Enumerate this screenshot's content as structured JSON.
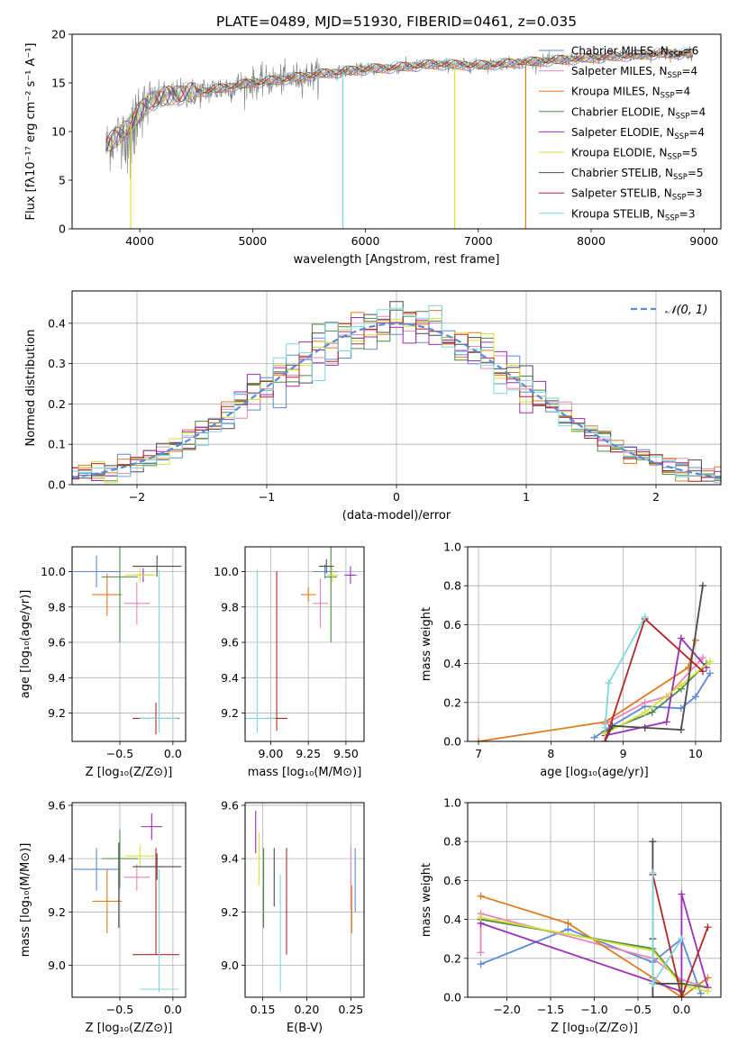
{
  "figure": {
    "title": "PLATE=0489, MJD=51930, FIBERID=0461, z=0.035",
    "series_colors": {
      "Chabrier MILES": "#5b8bd6",
      "Salpeter MILES": "#e886b8",
      "Kroupa MILES": "#e07b20",
      "Chabrier ELODIE": "#4d8a4a",
      "Salpeter ELODIE": "#9a2fb8",
      "Kroupa ELODIE": "#d6e23a",
      "Chabrier STELIB": "#4a4a4a",
      "Salpeter STELIB": "#b0282a",
      "Kroupa STELIB": "#7ed8de",
      "data": "#808080",
      "gaussian": "#5b8bd6"
    }
  },
  "chart_data": [
    {
      "id": "spectrum",
      "type": "line",
      "title": "PLATE=0489, MJD=51930, FIBERID=0461, z=0.035",
      "xlabel": "wavelength [Angstrom, rest frame]",
      "ylabel": "Flux [fλ10⁻¹⁷ erg cm⁻² s⁻¹ A⁻¹]",
      "xlim": [
        3400,
        9150
      ],
      "ylim": [
        0,
        20
      ],
      "xticks": [
        4000,
        5000,
        6000,
        7000,
        8000,
        9000
      ],
      "yticks": [
        0,
        5,
        10,
        15,
        20
      ],
      "grid": false,
      "legend_position": "right",
      "continuum": {
        "x": [
          3700,
          3800,
          3900,
          4000,
          4100,
          4300,
          4500,
          4800,
          5000,
          5300,
          5600,
          6000,
          6300,
          6600,
          7000,
          7400,
          7800,
          8200,
          8600,
          8900
        ],
        "y": [
          8.5,
          9.5,
          10.5,
          12.0,
          13.2,
          13.8,
          14.0,
          14.6,
          15.0,
          15.4,
          15.9,
          16.4,
          16.6,
          16.9,
          16.8,
          17.1,
          17.4,
          17.7,
          18.0,
          18.0
        ]
      },
      "spikes": [
        {
          "x": 3920,
          "y": 0,
          "color": "#d6e23a"
        },
        {
          "x": 5800,
          "y": 0,
          "color": "#7ed8de"
        },
        {
          "x": 6790,
          "y": 0,
          "color": "#d6e23a"
        },
        {
          "x": 7420,
          "y": 0,
          "color": "#e07b20"
        }
      ],
      "series": [
        {
          "name": "Chabrier MILES, N_SSP=6",
          "label": "Chabrier MILES, N",
          "sub": "SSP",
          "suffix": "=6",
          "color": "#5b8bd6"
        },
        {
          "name": "Salpeter MILES, N_SSP=4",
          "label": "Salpeter MILES, N",
          "sub": "SSP",
          "suffix": "=4",
          "color": "#e886b8"
        },
        {
          "name": "Kroupa MILES, N_SSP=4",
          "label": "Kroupa MILES, N",
          "sub": "SSP",
          "suffix": "=4",
          "color": "#e07b20"
        },
        {
          "name": "Chabrier ELODIE, N_SSP=4",
          "label": "Chabrier ELODIE, N",
          "sub": "SSP",
          "suffix": "=4",
          "color": "#4d8a4a"
        },
        {
          "name": "Salpeter ELODIE, N_SSP=4",
          "label": "Salpeter ELODIE, N",
          "sub": "SSP",
          "suffix": "=4",
          "color": "#9a2fb8"
        },
        {
          "name": "Kroupa ELODIE, N_SSP=5",
          "label": "Kroupa ELODIE, N",
          "sub": "SSP",
          "suffix": "=5",
          "color": "#d6e23a"
        },
        {
          "name": "Chabrier STELIB, N_SSP=5",
          "label": "Chabrier STELIB, N",
          "sub": "SSP",
          "suffix": "=5",
          "color": "#4a4a4a"
        },
        {
          "name": "Salpeter STELIB, N_SSP=3",
          "label": "Salpeter STELIB, N",
          "sub": "SSP",
          "suffix": "=3",
          "color": "#b0282a"
        },
        {
          "name": "Kroupa STELIB, N_SSP=3",
          "label": "Kroupa STELIB, N",
          "sub": "SSP",
          "suffix": "=3",
          "color": "#7ed8de"
        }
      ]
    },
    {
      "id": "residuals",
      "type": "line",
      "xlabel": "(data-model)/error",
      "ylabel": "Normed distribution",
      "xlim": [
        -2.5,
        2.5
      ],
      "ylim": [
        0,
        0.48
      ],
      "xticks": [
        -2,
        -1,
        0,
        1,
        2
      ],
      "xticklabels": [
        "−2",
        "−1",
        "0",
        "1",
        "2"
      ],
      "yticks": [
        0.0,
        0.1,
        0.2,
        0.3,
        0.4
      ],
      "yticklabels": [
        "0.0",
        "0.1",
        "0.2",
        "0.3",
        "0.4"
      ],
      "grid": true,
      "legend": "𝒩(0, 1)",
      "legend_position": "top-right",
      "gaussian": {
        "mean": 0,
        "sigma": 1
      },
      "bin_width": 0.1
    },
    {
      "id": "z-age",
      "type": "scatter",
      "xlabel": "Z [log₁₀(Z/Z⊙)]",
      "ylabel": "age  [log₁₀(age/yr)]",
      "xlim": [
        -0.95,
        0.12
      ],
      "ylim": [
        9.04,
        10.14
      ],
      "xticks": [
        -0.5,
        0.0
      ],
      "xticklabels": [
        "−0.5",
        "0.0"
      ],
      "yticks": [
        9.2,
        9.4,
        9.6,
        9.8,
        10.0
      ],
      "yticklabels": [
        "9.2",
        "9.4",
        "9.6",
        "9.8",
        "10.0"
      ],
      "grid": true,
      "points": [
        {
          "x": -0.72,
          "y": 10.0,
          "xerr": 0.22,
          "yerr": 0.09,
          "color": "#5b8bd6"
        },
        {
          "x": -0.34,
          "y": 9.82,
          "xerr": 0.12,
          "yerr": 0.12,
          "color": "#e886b8"
        },
        {
          "x": -0.62,
          "y": 9.87,
          "xerr": 0.14,
          "yerr": 0.12,
          "color": "#e07b20"
        },
        {
          "x": -0.5,
          "y": 9.97,
          "xerr": 0.17,
          "yerr": 0.37,
          "color": "#4d8a4a"
        },
        {
          "x": -0.28,
          "y": 9.98,
          "xerr": 0.1,
          "yerr": 0.04,
          "color": "#9a2fb8"
        },
        {
          "x": -0.31,
          "y": 9.98,
          "xerr": 0.14,
          "yerr": 0.04,
          "color": "#d6e23a"
        },
        {
          "x": -0.15,
          "y": 10.03,
          "xerr": 0.23,
          "yerr": 0.06,
          "color": "#4a4a4a"
        },
        {
          "x": -0.16,
          "y": 9.17,
          "xerr": 0.22,
          "yerr": 0.09,
          "color": "#b0282a"
        },
        {
          "x": -0.13,
          "y": 9.55,
          "xerr": 0.0,
          "yerr": 0.46,
          "color": "#7ed8de"
        },
        {
          "x": -0.13,
          "y": 9.17,
          "xerr": 0.18,
          "yerr": 0.0,
          "color": "#7ed8de"
        }
      ]
    },
    {
      "id": "mass-age",
      "type": "scatter",
      "xlabel": "mass [log₁₀(M/M⊙)]",
      "xlim": [
        8.83,
        9.62
      ],
      "ylim": [
        9.04,
        10.14
      ],
      "xticks": [
        9.0,
        9.25,
        9.5
      ],
      "xticklabels": [
        "9.00",
        "9.25",
        "9.50"
      ],
      "yticks": [
        9.2,
        9.4,
        9.6,
        9.8,
        10.0
      ],
      "yticklabels": [
        "9.2",
        "9.4",
        "9.6",
        "9.8",
        "10.0"
      ],
      "grid": true,
      "points": [
        {
          "x": 9.36,
          "y": 10.0,
          "xerr": 0.08,
          "yerr": 0.04,
          "color": "#5b8bd6"
        },
        {
          "x": 9.33,
          "y": 9.82,
          "xerr": 0.05,
          "yerr": 0.14,
          "color": "#e886b8"
        },
        {
          "x": 9.25,
          "y": 9.87,
          "xerr": 0.05,
          "yerr": 0.04,
          "color": "#e07b20"
        },
        {
          "x": 9.4,
          "y": 9.97,
          "xerr": 0.04,
          "yerr": 0.37,
          "color": "#4d8a4a"
        },
        {
          "x": 9.53,
          "y": 9.98,
          "xerr": 0.04,
          "yerr": 0.05,
          "color": "#9a2fb8"
        },
        {
          "x": 9.41,
          "y": 9.98,
          "xerr": 0.04,
          "yerr": 0.04,
          "color": "#d6e23a"
        },
        {
          "x": 9.37,
          "y": 10.03,
          "xerr": 0.05,
          "yerr": 0.04,
          "color": "#4a4a4a"
        },
        {
          "x": 9.04,
          "y": 9.17,
          "xerr": 0.07,
          "yerr": 0.0,
          "color": "#b0282a"
        },
        {
          "x": 9.04,
          "y": 9.55,
          "xerr": 0.0,
          "yerr": 0.45,
          "color": "#b0282a"
        },
        {
          "x": 8.91,
          "y": 9.55,
          "xerr": 0.0,
          "yerr": 0.46,
          "color": "#7ed8de"
        },
        {
          "x": 8.91,
          "y": 9.17,
          "xerr": 0.12,
          "yerr": 0.0,
          "color": "#7ed8de"
        }
      ]
    },
    {
      "id": "age-weight",
      "type": "line",
      "xlabel": "age  [log₁₀(age/yr)]",
      "ylabel": "mass weight",
      "xlim": [
        6.85,
        10.35
      ],
      "ylim": [
        0,
        1.0
      ],
      "xticks": [
        7,
        8,
        9,
        10
      ],
      "xticklabels": [
        "7",
        "8",
        "9",
        "10"
      ],
      "yticks": [
        0.0,
        0.2,
        0.4,
        0.6,
        0.8,
        1.0
      ],
      "yticklabels": [
        "0.0",
        "0.2",
        "0.4",
        "0.6",
        "0.8",
        "1.0"
      ],
      "grid": true,
      "series": [
        {
          "color": "#5b8bd6",
          "x": [
            8.6,
            8.8,
            9.3,
            9.8,
            10.0,
            10.2
          ],
          "y": [
            0.02,
            0.07,
            0.18,
            0.17,
            0.23,
            0.35
          ]
        },
        {
          "color": "#e886b8",
          "x": [
            8.75,
            9.3,
            9.6,
            10.1
          ],
          "y": [
            0.09,
            0.2,
            0.23,
            0.43
          ]
        },
        {
          "color": "#e07b20",
          "x": [
            7.0,
            8.75,
            9.9,
            10.0
          ],
          "y": [
            0.0,
            0.1,
            0.38,
            0.52
          ]
        },
        {
          "color": "#4d8a4a",
          "x": [
            8.75,
            9.4,
            9.8,
            10.15
          ],
          "y": [
            0.05,
            0.15,
            0.27,
            0.4
          ]
        },
        {
          "color": "#9a2fb8",
          "x": [
            8.75,
            9.6,
            9.8,
            10.15
          ],
          "y": [
            0.03,
            0.1,
            0.53,
            0.38
          ]
        },
        {
          "color": "#d6e23a",
          "x": [
            8.75,
            9.3,
            9.8,
            10.2
          ],
          "y": [
            0.04,
            0.15,
            0.29,
            0.41
          ]
        },
        {
          "color": "#4a4a4a",
          "x": [
            8.75,
            8.85,
            9.3,
            9.8,
            10.1
          ],
          "y": [
            0.0,
            0.08,
            0.07,
            0.06,
            0.8
          ]
        },
        {
          "color": "#b0282a",
          "x": [
            8.75,
            9.3,
            10.1
          ],
          "y": [
            0.0,
            0.63,
            0.36
          ]
        },
        {
          "color": "#7ed8de",
          "x": [
            8.75,
            8.8,
            9.3
          ],
          "y": [
            0.07,
            0.3,
            0.64
          ]
        }
      ]
    },
    {
      "id": "z-mass",
      "type": "scatter",
      "xlabel": "Z [log₁₀(Z/Z⊙)]",
      "ylabel": "mass [log₁₀(M/M⊙)]",
      "xlim": [
        -0.95,
        0.12
      ],
      "ylim": [
        8.88,
        9.61
      ],
      "xticks": [
        -0.5,
        0.0
      ],
      "xticklabels": [
        "−0.5",
        "0.0"
      ],
      "yticks": [
        9.0,
        9.2,
        9.4,
        9.6
      ],
      "yticklabels": [
        "9.0",
        "9.2",
        "9.4",
        "9.6"
      ],
      "grid": true,
      "points": [
        {
          "x": -0.72,
          "y": 9.36,
          "xerr": 0.22,
          "yerr": 0.08,
          "color": "#5b8bd6"
        },
        {
          "x": -0.34,
          "y": 9.33,
          "xerr": 0.12,
          "yerr": 0.05,
          "color": "#e886b8"
        },
        {
          "x": -0.62,
          "y": 9.24,
          "xerr": 0.14,
          "yerr": 0.12,
          "color": "#e07b20"
        },
        {
          "x": -0.5,
          "y": 9.4,
          "xerr": 0.17,
          "yerr": 0.11,
          "color": "#4d8a4a"
        },
        {
          "x": -0.2,
          "y": 9.52,
          "xerr": 0.1,
          "yerr": 0.05,
          "color": "#9a2fb8"
        },
        {
          "x": -0.31,
          "y": 9.41,
          "xerr": 0.14,
          "yerr": 0.04,
          "color": "#d6e23a"
        },
        {
          "x": -0.15,
          "y": 9.37,
          "xerr": 0.23,
          "yerr": 0.05,
          "color": "#4a4a4a"
        },
        {
          "x": -0.51,
          "y": 9.3,
          "xerr": 0.0,
          "yerr": 0.16,
          "color": "#4a4a4a"
        },
        {
          "x": -0.16,
          "y": 9.04,
          "xerr": 0.22,
          "yerr": 0.0,
          "color": "#b0282a"
        },
        {
          "x": -0.16,
          "y": 9.24,
          "xerr": 0.0,
          "yerr": 0.2,
          "color": "#b0282a"
        },
        {
          "x": -0.13,
          "y": 8.91,
          "xerr": 0.18,
          "yerr": 0.0,
          "color": "#7ed8de"
        },
        {
          "x": -0.13,
          "y": 9.13,
          "xerr": 0.0,
          "yerr": 0.23,
          "color": "#7ed8de"
        }
      ]
    },
    {
      "id": "ebv-mass",
      "type": "scatter",
      "xlabel": "E(B-V)",
      "xlim": [
        0.13,
        0.265
      ],
      "ylim": [
        8.88,
        9.61
      ],
      "xticks": [
        0.15,
        0.2,
        0.25
      ],
      "xticklabels": [
        "0.15",
        "0.20",
        "0.25"
      ],
      "yticks": [
        9.0,
        9.2,
        9.4,
        9.6
      ],
      "yticklabels": [
        "9.0",
        "9.2",
        "9.4",
        "9.6"
      ],
      "grid": true,
      "points": [
        {
          "x": 0.255,
          "y": 9.32,
          "xerr": 0.0,
          "yerr": 0.12,
          "color": "#5b8bd6"
        },
        {
          "x": 0.25,
          "y": 9.33,
          "xerr": 0.0,
          "yerr": 0.12,
          "color": "#e886b8"
        },
        {
          "x": 0.251,
          "y": 9.21,
          "xerr": 0.0,
          "yerr": 0.09,
          "color": "#e07b20"
        },
        {
          "x": 0.151,
          "y": 9.29,
          "xerr": 0.0,
          "yerr": 0.15,
          "color": "#4d8a4a"
        },
        {
          "x": 0.142,
          "y": 9.5,
          "xerr": 0.0,
          "yerr": 0.08,
          "color": "#9a2fb8"
        },
        {
          "x": 0.146,
          "y": 9.4,
          "xerr": 0.0,
          "yerr": 0.1,
          "color": "#d6e23a"
        },
        {
          "x": 0.163,
          "y": 9.33,
          "xerr": 0.0,
          "yerr": 0.11,
          "color": "#4a4a4a"
        },
        {
          "x": 0.177,
          "y": 9.24,
          "xerr": 0.0,
          "yerr": 0.2,
          "color": "#b0282a"
        },
        {
          "x": 0.17,
          "y": 9.12,
          "xerr": 0.0,
          "yerr": 0.22,
          "color": "#7ed8de"
        }
      ]
    },
    {
      "id": "z-weight",
      "type": "line",
      "xlabel": "Z [log₁₀(Z/Z⊙)]",
      "ylabel": "mass weight",
      "xlim": [
        -2.45,
        0.45
      ],
      "ylim": [
        0,
        1.0
      ],
      "xticks": [
        -2.0,
        -1.5,
        -1.0,
        -0.5,
        0.0
      ],
      "xticklabels": [
        "−2.0",
        "−1.5",
        "−1.0",
        "−0.5",
        "0.0"
      ],
      "yticks": [
        0.0,
        0.2,
        0.4,
        0.6,
        0.8,
        1.0
      ],
      "yticklabels": [
        "0.0",
        "0.2",
        "0.4",
        "0.6",
        "0.8",
        "1.0"
      ],
      "grid": true,
      "series": [
        {
          "color": "#5b8bd6",
          "x": [
            -2.3,
            -1.3,
            -0.33,
            0.0,
            0.22
          ],
          "y": [
            0.17,
            0.35,
            0.18,
            0.3,
            0.02
          ]
        },
        {
          "color": "#e886b8",
          "x": [
            -2.3,
            -2.3,
            -0.33,
            0.0,
            0.3
          ],
          "y": [
            0.23,
            0.43,
            0.2,
            0.09,
            0.05
          ]
        },
        {
          "color": "#e07b20",
          "x": [
            -2.3,
            -1.3,
            -0.33,
            0.0,
            0.3
          ],
          "y": [
            0.52,
            0.38,
            0.1,
            0.0,
            0.1
          ]
        },
        {
          "color": "#4d8a4a",
          "x": [
            -2.3,
            -0.33,
            0.0,
            0.3
          ],
          "y": [
            0.4,
            0.25,
            0.07,
            0.05
          ]
        },
        {
          "color": "#9a2fb8",
          "x": [
            -2.3,
            0.0,
            0.0,
            0.3
          ],
          "y": [
            0.38,
            0.03,
            0.53,
            0.05
          ]
        },
        {
          "color": "#d6e23a",
          "x": [
            -2.3,
            -0.33,
            0.0,
            0.3
          ],
          "y": [
            0.41,
            0.24,
            0.06,
            0.03
          ]
        },
        {
          "color": "#4a4a4a",
          "x": [
            -0.33,
            -0.33,
            0.0,
            0.0,
            -0.33,
            -0.33
          ],
          "y": [
            0.8,
            0.0,
            0.0,
            0.07,
            0.07,
            0.3
          ]
        },
        {
          "color": "#b0282a",
          "x": [
            -0.33,
            0.0,
            0.3
          ],
          "y": [
            0.63,
            0.0,
            0.36
          ]
        },
        {
          "color": "#7ed8de",
          "x": [
            -0.33,
            -0.33,
            0.0
          ],
          "y": [
            0.64,
            0.07,
            0.3
          ]
        }
      ]
    }
  ]
}
